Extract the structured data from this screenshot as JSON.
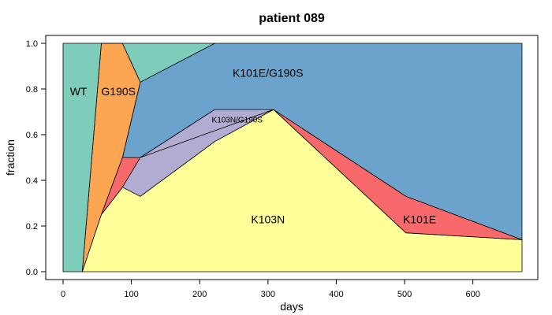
{
  "chart_data": {
    "type": "area",
    "title": "patient 089",
    "xlabel": "days",
    "ylabel": "fraction",
    "xlim": [
      0,
      672
    ],
    "ylim": [
      0,
      1
    ],
    "xticks": [
      "0",
      "100",
      "200",
      "300",
      "400",
      "500",
      "600"
    ],
    "yticks": [
      "0.0",
      "0.2",
      "0.4",
      "0.6",
      "0.8",
      "1.0"
    ],
    "grid": false,
    "legend": "none",
    "series": [
      {
        "name": "K103N",
        "color": "#FFFF99",
        "x": [
          28,
          56,
          87,
          113,
          222,
          308,
          502,
          672
        ],
        "lower": [
          0,
          0,
          0,
          0,
          0,
          0,
          0,
          0
        ],
        "upper": [
          0,
          0.25,
          0.37,
          0.33,
          0.57,
          0.71,
          0.17,
          0.14
        ]
      },
      {
        "name": "K103N/G190S",
        "color": "#B2ABD2",
        "x": [
          87,
          113,
          222,
          308
        ],
        "lower": [
          0.37,
          0.33,
          0.57,
          0.71
        ],
        "upper": [
          0.5,
          0.5,
          0.71,
          0.71
        ]
      },
      {
        "name": "K101E",
        "color": "#F8696B",
        "x": [
          56,
          87,
          113,
          308,
          502,
          672
        ],
        "lower": [
          0.25,
          0.37,
          0.5,
          0.71,
          0.17,
          0.14
        ],
        "upper": [
          0.25,
          0.5,
          0.5,
          0.71,
          0.33,
          0.14
        ]
      },
      {
        "name": "K101E/G190S",
        "color": "#6BA3CC",
        "x": [
          87,
          113,
          222,
          308,
          502,
          672
        ],
        "lower": [
          0.5,
          0.5,
          0.71,
          0.71,
          0.33,
          0.14
        ],
        "upper": [
          0.5,
          0.83,
          1.0,
          1.0,
          1.0,
          1.0
        ]
      },
      {
        "name": "G190S",
        "color": "#FCA553",
        "x": [
          28,
          56,
          87,
          113
        ],
        "lower": [
          0,
          0.25,
          0.5,
          0.83
        ],
        "upper": [
          0,
          1.0,
          1.0,
          0.83
        ]
      },
      {
        "name": "WT",
        "color": "#7ECDBB",
        "x": [
          0,
          28,
          56,
          87,
          113,
          222
        ],
        "lower": [
          0,
          0,
          1.0,
          1.0,
          0.83,
          1.0
        ],
        "upper": [
          1.0,
          1.0,
          1.0,
          1.0,
          1.0,
          1.0
        ]
      }
    ],
    "annotations": [
      {
        "text": "WT",
        "x": 10,
        "y": 0.79,
        "size": "large"
      },
      {
        "text": "G190S",
        "x": 81,
        "y": 0.79,
        "size": "large"
      },
      {
        "text": "K101E/G190S",
        "x": 300,
        "y": 0.87,
        "size": "large"
      },
      {
        "text": "K103N/G190S",
        "x": 255,
        "y": 0.67,
        "size": "small"
      },
      {
        "text": "K103N",
        "x": 300,
        "y": 0.23,
        "size": "large"
      },
      {
        "text": "K101E",
        "x": 522,
        "y": 0.23,
        "size": "large"
      }
    ]
  }
}
